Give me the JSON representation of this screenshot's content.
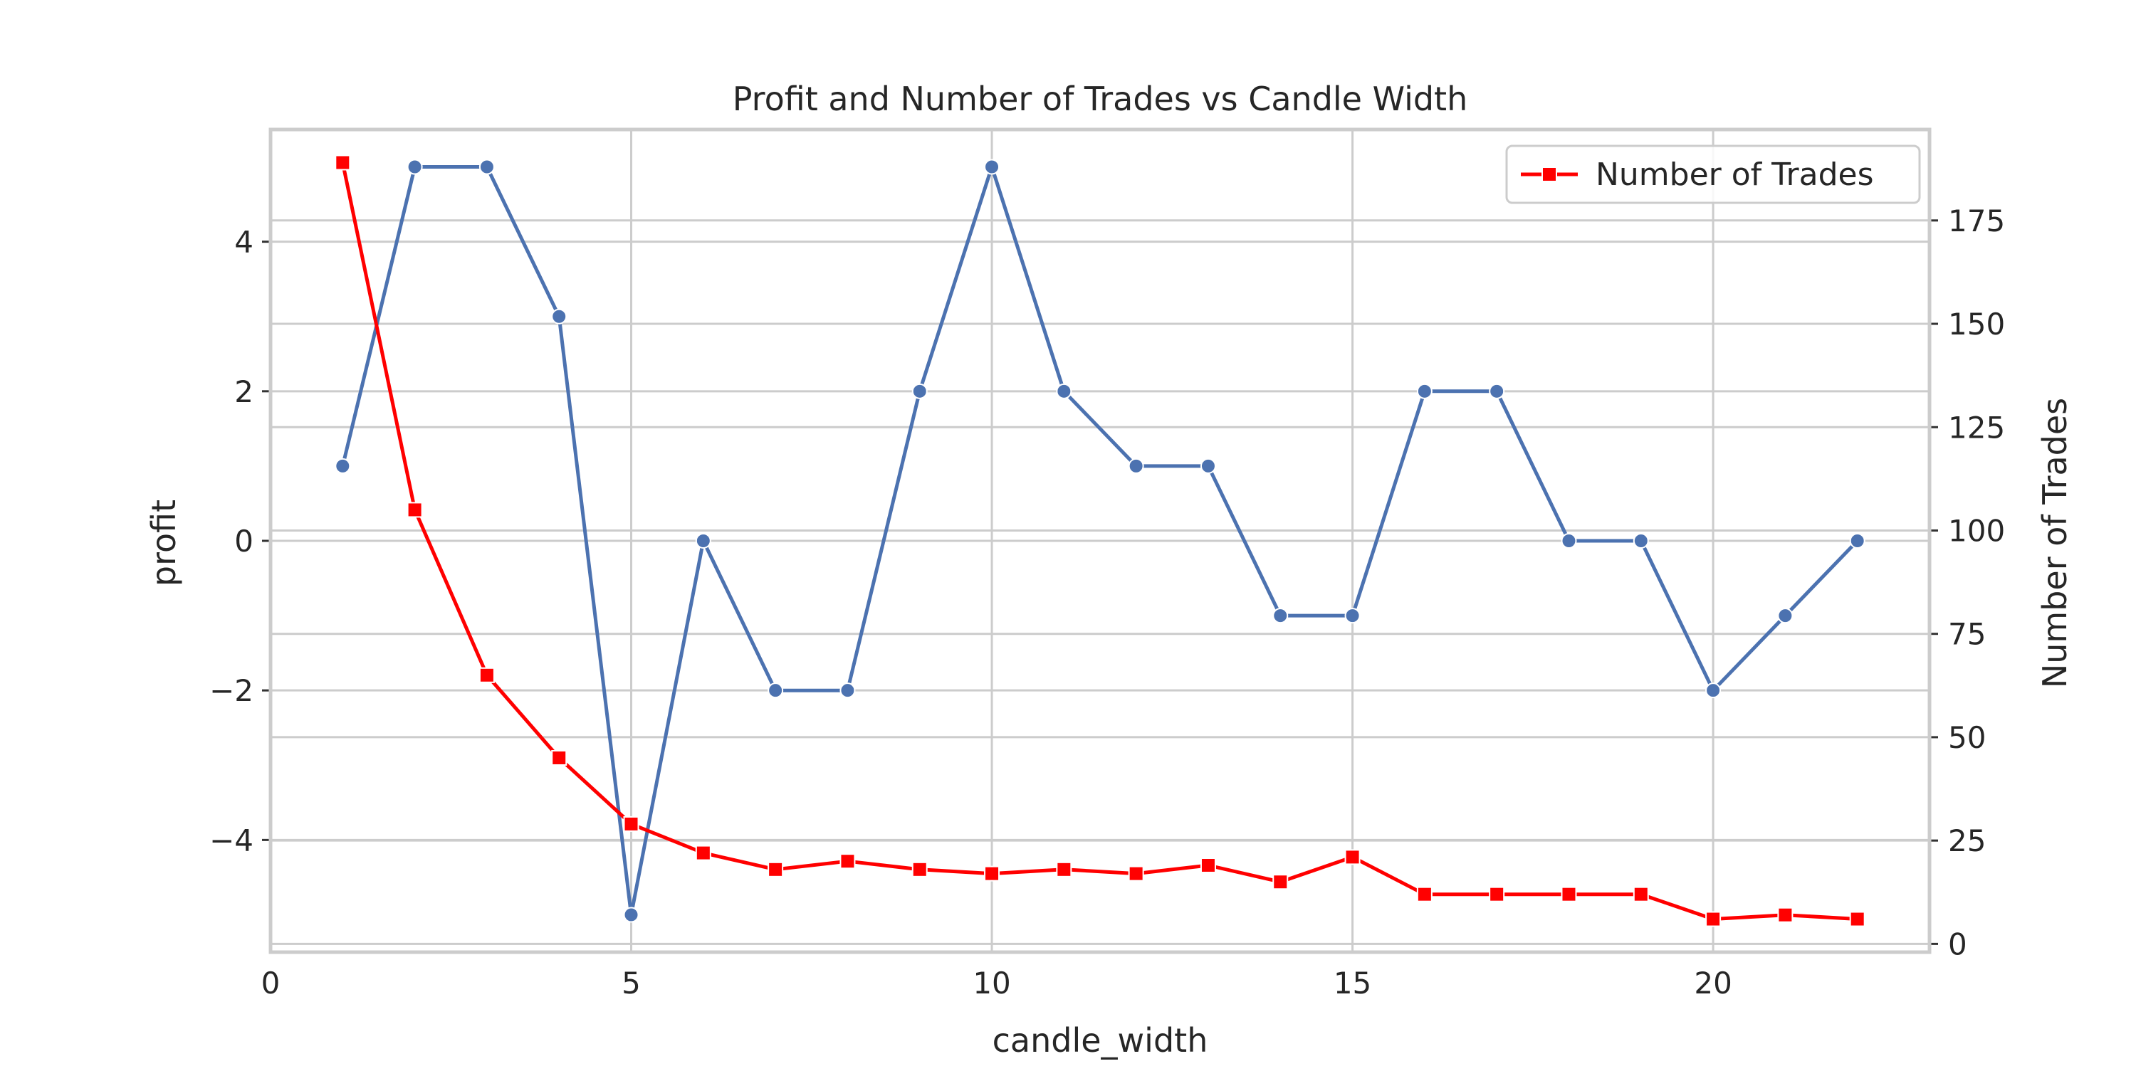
{
  "chart_data": {
    "type": "line",
    "title": "Profit and Number of Trades vs Candle Width",
    "xlabel": "candle_width",
    "ylabel_left": "profit",
    "ylabel_right": "Number of Trades",
    "x": [
      1,
      2,
      3,
      4,
      5,
      6,
      7,
      8,
      9,
      10,
      11,
      12,
      13,
      14,
      15,
      16,
      17,
      18,
      19,
      20,
      21,
      22
    ],
    "xlim": [
      0,
      23
    ],
    "x_ticks": [
      0,
      5,
      10,
      15,
      20
    ],
    "ylim_left": [
      -5.5,
      5.5
    ],
    "y_ticks_left": [
      -4,
      -2,
      0,
      2,
      4
    ],
    "y_tick_labels_left": [
      "−4",
      "−2",
      "0",
      "2",
      "4"
    ],
    "ylim_right": [
      -2,
      197
    ],
    "y_ticks_right": [
      0,
      25,
      50,
      75,
      100,
      125,
      150,
      175
    ],
    "grid": true,
    "legend_position": "top-right",
    "series": [
      {
        "axis": "left",
        "color": "#4c72b0",
        "marker": "circle",
        "values": [
          1,
          5,
          5,
          3,
          -5,
          0,
          -2,
          -2,
          2,
          5,
          2,
          1,
          1,
          -1,
          -1,
          2,
          2,
          0,
          0,
          -2,
          -1,
          0
        ]
      },
      {
        "name": "Number of Trades",
        "axis": "right",
        "color": "#ff0000",
        "marker": "square",
        "values": [
          189,
          105,
          65,
          45,
          29,
          22,
          18,
          20,
          18,
          17,
          18,
          17,
          19,
          15,
          21,
          12,
          12,
          12,
          12,
          6,
          7,
          6
        ]
      }
    ]
  }
}
